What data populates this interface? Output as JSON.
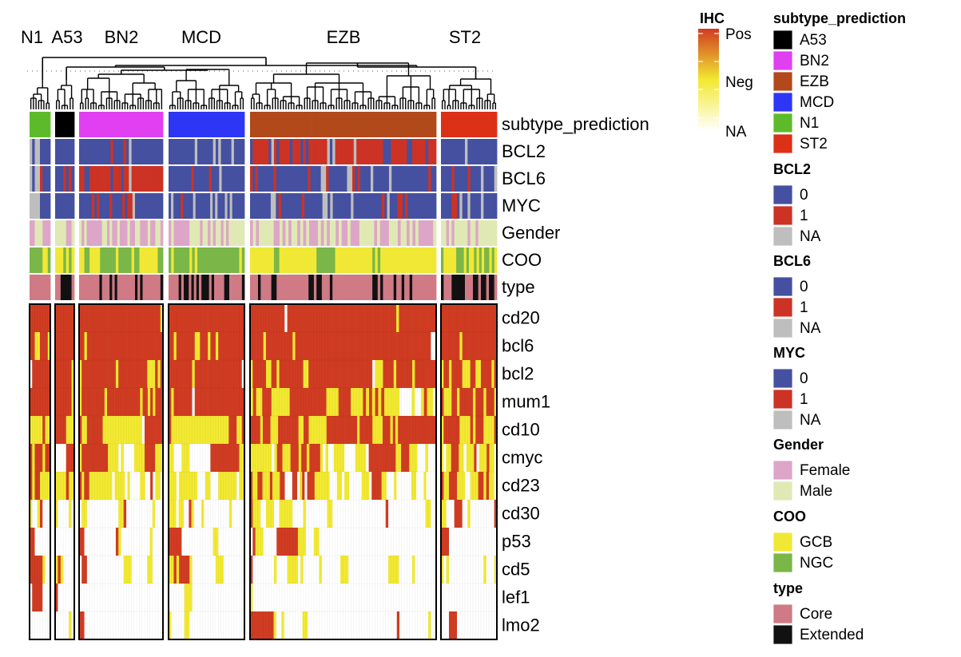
{
  "chart_data": {
    "type": "heatmap",
    "title": "",
    "cluster_labels": [
      "N1",
      "A53",
      "BN2",
      "MCD",
      "EZB",
      "ST2"
    ],
    "clusters": [
      {
        "name": "N1",
        "n": 8
      },
      {
        "name": "A53",
        "n": 7
      },
      {
        "name": "BN2",
        "n": 32
      },
      {
        "name": "MCD",
        "n": 29
      },
      {
        "name": "EZB",
        "n": 70
      },
      {
        "name": "ST2",
        "n": 21
      }
    ],
    "annotation_rows": [
      "subtype_prediction",
      "BCL2",
      "BCL6",
      "MYC",
      "Gender",
      "COO",
      "type"
    ],
    "annotations": {
      "subtype_prediction": {
        "N1": "N1*8",
        "A53": "A53*7",
        "BN2": "BN2*32",
        "MCD": "MCD*29",
        "EZB": "EZB*70",
        "ST2": "ST2*21"
      },
      "BCL2": {
        "N1": "NA*1,0*1,NA*2,0*4",
        "A53": "0*7",
        "BN2": "0*12,1*1,0*4,1*1,0*1,NA*1,0*12",
        "MCD": "0*10,NA*1,0*6,NA*1,0*1,NA*1,0*4,NA*1,0*4",
        "EZB": "0*1,1*6,0*1,NA*1,1*1,0*1,1*4,0*1,1*3,0*1,1*1,0*1,1*7,NA*1,0*1,NA*1,1*7,NA*1,1*10,0*3,1*6,0*2,1*5,0*1,1*3",
        "ST2": "0*9,NA*1,0*11"
      },
      "BCL6": {
        "N1": "NA*1,0*1,NA*2,1*1,0*3",
        "A53": "0*3,1*1,0*1,1*1,0*1",
        "BN2": "1*2,0*2,1*8,0*1,1*3,0*1,1*2,NA*1,1*12",
        "MCD": "0*9,1*1,0*6,1*1,0*3,NA*1,0*9",
        "EZB": "1*1,0*1,1*1,0*6,1*1,0*12,1*1,0*4,NA*2,1*1,0*7,NA*2,1*1,0*1,1*1,0*4,NA*1,0*6,NA*1,0*14,1*1,0*2",
        "ST2": "0*4,1*1,0*5,1*1,0*4,NA*1,0*4,NA*1"
      },
      "MYC": {
        "N1": "NA*4,0*4",
        "A53": "0*7",
        "BN2": "0*5,1*1,0*1,1*1,0*4,1*1,0*4,1*1,0*1,1*2,NA*1,0*11",
        "MCD": "0*1,NA*1,0*3,1*1,0*4,NA*1,0*6,NA*1,0*1,NA*1,0*3,NA*1,0*1,NA*1,0*5",
        "EZB": "0*8,NA*2,0*1,1*1,0*8,1*1,0*7,NA*2,0*1,NA*1,0*7,NA*1,0*11,1*1,0*1,NA*1,0*3,1*2,0*1,1*1,0*11",
        "ST2": "0*4,1*2,0*1,NA*1,0*2,NA*1,0*4,NA*1,0*5"
      },
      "Gender": {
        "N1": "Female*2,Male*3,Female*3",
        "A53": "Male*4,Female*2,Male*1",
        "BN2": "Male*1,Female*1,Male*1,Female*6,Male*2,Female*1,Male*1,Female*2,Male*1,Female*3,Male*1,Female*2,Male*2,Female*3,Male*1,Female*2,Male*2,Female*1",
        "MCD": "Female*1,Male*1,Female*6,Male*4,Female*1,Male*2,Female*1,Male*1,Female*1,Male*2,Female*1,Male*1,Female*1,Male*6",
        "EZB": "Female*1,Male*1,Female*1,Male*5,Female*2,Male*1,Female*1,Male*1,Female*1,Male*2,Female*1,Male*1,Female*1,Male*1,Female*3,Male*1,Female*1,Male*1,Female*1,Male*2,Female*1,Male*1,Female*2,Male*1,Female*3,Male*5,Female*1,Male*1,Female*3,Male*3,Female*1,Male*2,Female*1,Male*1,Female*1,Male*1,Female*5,Male*1",
        "ST2": "Male*2,Female*1,Male*1,Female*1,Male*5,Female*1,Male*2,Female*1,Male*7"
      },
      "COO": {
        "N1": "NGC*5,GCB*2,NGC*1",
        "A53": "GCB*3,NGC*1,GCB*1,NGC*1,GCB*1",
        "BN2": "GCB*2,NGC*2,GCB*4,NGC*6,GCB*1,NGC*5,GCB*1,NGC*2,GCB*7,NGC*2",
        "MCD": "NGC*1,GCB*1,NGC*6,GCB*1,NGC*1,GCB*1,NGC*16,GCB*1,NGC*1",
        "EZB": "GCB*9,NGC*2,GCB*14,NGC*7,GCB*14,NGC*1,GCB*1,NGC*1,GCB*21",
        "ST2": "NGC*1,GCB*5,NGC*3,GCB*1,NGC*1,GCB*2,NGC*1,GCB*1,NGC*1,GCB*1,NGC*2,GCB*1,NGC*1,GCB*1"
      },
      "type": {
        "N1": "Core*8",
        "A53": "Core*2,Extended*4,Core*1",
        "BN2": "Core*8,Extended*1,Core*3,Extended*1,Core*1,Extended*1,Core*7,Extended*1,Core*1,Extended*1,Core*7,Extended*1",
        "MCD": "Core*4,Extended*1,Core*1,Extended*2,Core*1,Extended*1,Core*1,Extended*1,Core*1,Extended*3,Core*1,Extended*1,Core*4,Extended*2,Core*5,Extended*1",
        "EZB": "Core*3,Extended*1,Core*4,Extended*2,Core*12,Extended*2,Core*1,Extended*2,Core*3,Extended*1,Core*15,Extended*2,Core*1,Extended*1,Core*4,Extended*1,Core*2,Extended*1,Core*2,Extended*1,Core*9",
        "ST2": "Extended*1,Core*3,Extended*5,Core*3,Extended*2,Core*1,Extended*2,Core*1,Extended*2,Core*1"
      }
    },
    "ihc_rows": [
      "cd20",
      "bcl6",
      "bcl2",
      "mum1",
      "cd10",
      "cmyc",
      "cd23",
      "cd30",
      "p53",
      "cd5",
      "lef1",
      "lmo2"
    ],
    "ihc": {
      "cd20": {
        "N1": "P*8",
        "A53": "P*7",
        "BN2": "P*31,N*1",
        "MCD": "P*29",
        "EZB": "P*13,A*1,P*41,N*1,P*14",
        "ST2": "P*21"
      },
      "bcl6": {
        "N1": "P*2,N*2,P*3,N*1",
        "A53": "P*7",
        "BN2": "P*2,N*1,P*29",
        "MCD": "P*2,N*1,P*7,N*2,P*3,N*1,P*2,N*1,P*10",
        "EZB": "P*5,N*1,P*10,N*1,P*51,A*2",
        "ST2": "P*7,N*1,P*13"
      },
      "bcl2": {
        "N1": "A*1,P*7",
        "A53": "P*6,N*1",
        "BN2": "N*1,P*13,N*1,P*11,N*3,P*1,N*1,P*1",
        "MCD": "P*9,N*1,P*18,A*1",
        "EZB": "N*1,P*5,N*2,P*2,N*1,P*9,N*2,P*24,A*1,N*3,P*4,N*1,P*6,N*1,P*8",
        "ST2": "N*1,P*2,N*1,P*4,N*3,P*2,N*2,P*4,N*1,P*1"
      },
      "mum1": {
        "N1": "P*8",
        "A53": "P*6,N*1",
        "BN2": "N*1,P*9,N*1,P*13,N*1,P*2,N*1,P*1,N*1,P*3",
        "MCD": "P*1,N*1,P*7,A*1,P*19",
        "EZB": "N*1,P*1,N*2,P*3,N*6,P*12,N*4,P*4,N*4,P*1,N*1,P*1,N*1,P*1,N*1,P*1,N*5,A*4,N*1,A*2,N*1,P*1,N*2,A*1",
        "ST2": "P*1,N*3,P*2,N*1,P*5,N*1,P*3,N*1,P*3,N*1"
      },
      "cd10": {
        "N1": "N*5,P*1,N*2",
        "A53": "P*4,N*3",
        "BN2": "P*1,N*2,P*6,N*15,A*1,P*7",
        "MCD": "P*1,N*2,N*20,P*3,N*2,P*1",
        "EZB": "P*4,N*1,P*3,N*3,P*8,N*2,P*2,N*7,P*12,N*1,P*5,N*4,P*3,N*1,P*1,N*1,P*15",
        "ST2": "N*1,P*6,N*4,P*1,N*1,P*3,N*4,P*1"
      },
      "cmyc": {
        "N1": "P*1,N*1,P*3,N*1,P*2",
        "A53": "A*4,P*3",
        "BN2": "N*1,P*10,N*4,A*1,N*1,A*4,N*4,P*4,N*3",
        "MCD": "N*2,A*3,N*3,A*8,P*11,N*2",
        "EZB": "N*8,A*1,N*1,P*2,N*3,P*3,N*1,P*2,N*1,P*4,N*1,A*1,N*1,A*2,N*4,A*4,N*4,A*1,P*10,N*2,P*3,N*3,A*3,N*1,A*3",
        "ST2": "N*1,A*1,N*2,P*3,N*2,A*1,N*3,P*1,A*1,N*3,P*1,N*2,A*1"
      },
      "cd23": {
        "N1": "P*1,N*1,P*2,N*4",
        "A53": "N*4,P*1,N*2",
        "BN2": "P*1,N*1,P*2,N*9,A*1,N*4,A*1,N*1,A*4,N*2,A*2,P*1,A*1,N*2,A*1",
        "MCD": "N*3,A*1,N*7,A*3,N*2,A*3,N*7,A*1,N*2",
        "EZB": "P*1,N*2,P*2,N*3,P*1,N*3,P*2,A*3,P*2,A*1,N*1,P*1,A*1,P*3,N*6,A*3,N*2,A*1,N*2,A*5,N*3,A*1,P*4,N*2,A*3,N*1,A*6,N*2,A*3,N*1,A*4",
        "ST2": "P*1,N*2,P*3,N*3,A*2,N*3,P*2,N*1,P*1,N*2,A*1"
      },
      "cd30": {
        "N1": "N*1,A*2,N*1,P*1,A*3",
        "A53": "N*1,A*4,N*1,A*1",
        "BN2": "A*1,N*2,A*12,N*2,P*1,A*10,N*1,A*3",
        "MCD": "N*3,A*1,N*2,A*2,P*1,N*1,A*3,N*1,A*10,N*1,A*5",
        "EZB": "P*1,N*3,A*2,N*3,A*2,N*5,A*4,N*1,A*8,N*2,A*20,P*1,A*14,N*2,A*2",
        "ST2": "N*2,A*3,P*3,A*2,N*1,A*9,P*1"
      },
      "p53": {
        "N1": "P*2,A*6",
        "A53": "A*7",
        "BN2": "P*2,A*12,P*1,N*1,A*11,N*1,A*4",
        "MCD": "P*5,A*12,N*2,A*10",
        "EZB": "A*1,P*1,N*3,A*5,P*8,N*3,A*3,N*2,A*44",
        "ST2": "P*3,A*18"
      },
      "cd5": {
        "N1": "P*5,N*1,A*2",
        "A53": "N*1,P*1,N*1,A*4",
        "BN2": "A*1,P*2,A*14,N*3,A*6,N*2,A*4",
        "MCD": "N*2,P*1,N*1,P*4,N*1,A*9,N*3,A*8",
        "EZB": "P*1,A*8,N*1,A*4,N*4,A*1,N*1,A*6,N*1,A*7,N*3,A*15,N*4,A*5,N*1,A*8",
        "ST2": "N*1,A*1,N*1,A*13,N*1,A*3,N*1"
      },
      "lef1": {
        "N1": "A*1,P*4,A*3",
        "A53": "P*1,A*6",
        "BN2": "A*32",
        "MCD": "A*6,N*3,A*20",
        "EZB": "N*1,A*69",
        "ST2": "A*21"
      },
      "lmo2": {
        "N1": "A*8",
        "A53": "A*5,N*1,A*1",
        "BN2": "P*2,A*30",
        "MCD": "N*1,A*5,N*2,A*21",
        "EZB": "P*9,N*1,A*2,N*1,A*7,N*2,A*34,P*1,A*11,N*1,A*2",
        "ST2": "A*3,P*3,A*15"
      }
    },
    "legends": {
      "ihc": {
        "title": "IHC",
        "labels": [
          "Pos",
          "Neg",
          "NA"
        ],
        "colors": [
          "#d03c22",
          "#f2e931",
          "#ffffff"
        ]
      },
      "subtype_prediction": {
        "title": "subtype_prediction",
        "items": [
          {
            "label": "A53",
            "color": "#000000"
          },
          {
            "label": "BN2",
            "color": "#e040f0"
          },
          {
            "label": "EZB",
            "color": "#b2491a"
          },
          {
            "label": "MCD",
            "color": "#2e36f5"
          },
          {
            "label": "N1",
            "color": "#5dbb2b"
          },
          {
            "label": "ST2",
            "color": "#dc3017"
          }
        ]
      },
      "BCL2": {
        "title": "BCL2",
        "items": [
          {
            "label": "0",
            "color": "#4550a0"
          },
          {
            "label": "1",
            "color": "#cc3324"
          },
          {
            "label": "NA",
            "color": "#bebebe"
          }
        ]
      },
      "BCL6": {
        "title": "BCL6",
        "items": [
          {
            "label": "0",
            "color": "#4550a0"
          },
          {
            "label": "1",
            "color": "#cc3324"
          },
          {
            "label": "NA",
            "color": "#bebebe"
          }
        ]
      },
      "MYC": {
        "title": "MYC",
        "items": [
          {
            "label": "0",
            "color": "#4550a0"
          },
          {
            "label": "1",
            "color": "#cc3324"
          },
          {
            "label": "NA",
            "color": "#bebebe"
          }
        ]
      },
      "Gender": {
        "title": "Gender",
        "items": [
          {
            "label": "Female",
            "color": "#dda6c8"
          },
          {
            "label": "Male",
            "color": "#e0e9b4"
          }
        ]
      },
      "COO": {
        "title": "COO",
        "items": [
          {
            "label": "GCB",
            "color": "#f0e835"
          },
          {
            "label": "NGC",
            "color": "#7ab648"
          }
        ]
      },
      "type": {
        "title": "type",
        "items": [
          {
            "label": "Core",
            "color": "#cf7a85"
          },
          {
            "label": "Extended",
            "color": "#111111"
          }
        ]
      }
    }
  }
}
